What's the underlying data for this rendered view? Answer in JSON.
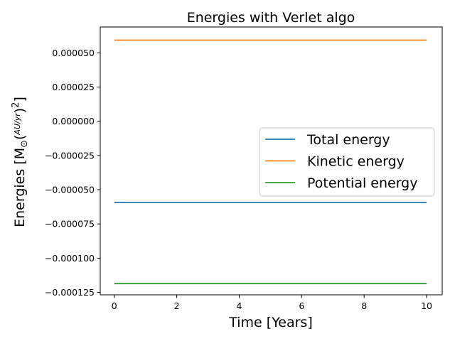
{
  "chart_data": {
    "type": "line",
    "title": "Energies with Verlet algo",
    "xlabel": "Time [Years]",
    "ylabel": "Energies",
    "xlim": [
      -0.45,
      10.5
    ],
    "ylim": [
      -0.0001268,
      6.89e-05
    ],
    "xticks": [
      0,
      2,
      4,
      6,
      8,
      10
    ],
    "xtick_labels": [
      "0",
      "2",
      "4",
      "6",
      "8",
      "10"
    ],
    "yticks": [
      5e-05,
      2.5e-05,
      0.0,
      -2.5e-05,
      -5e-05,
      -7.5e-05,
      -0.0001,
      -0.000125
    ],
    "ytick_labels": [
      "0.000050",
      "0.000025",
      "0.000000",
      "−0.000025",
      "−0.000050",
      "−0.000075",
      "−0.000100",
      "−0.000125"
    ],
    "grid": false,
    "legend_position": "center-right",
    "series": [
      {
        "name": "Total energy",
        "color": "#1f77b4",
        "x": [
          0,
          10
        ],
        "y": [
          -5.93e-05,
          -5.93e-05
        ]
      },
      {
        "name": "Kinetic energy",
        "color": "#ff7f0e",
        "x": [
          0,
          10
        ],
        "y": [
          5.93e-05,
          5.93e-05
        ]
      },
      {
        "name": "Potential energy",
        "color": "#2ca02c",
        "x": [
          0,
          10
        ],
        "y": [
          -0.0001186,
          -0.0001186
        ]
      }
    ]
  }
}
